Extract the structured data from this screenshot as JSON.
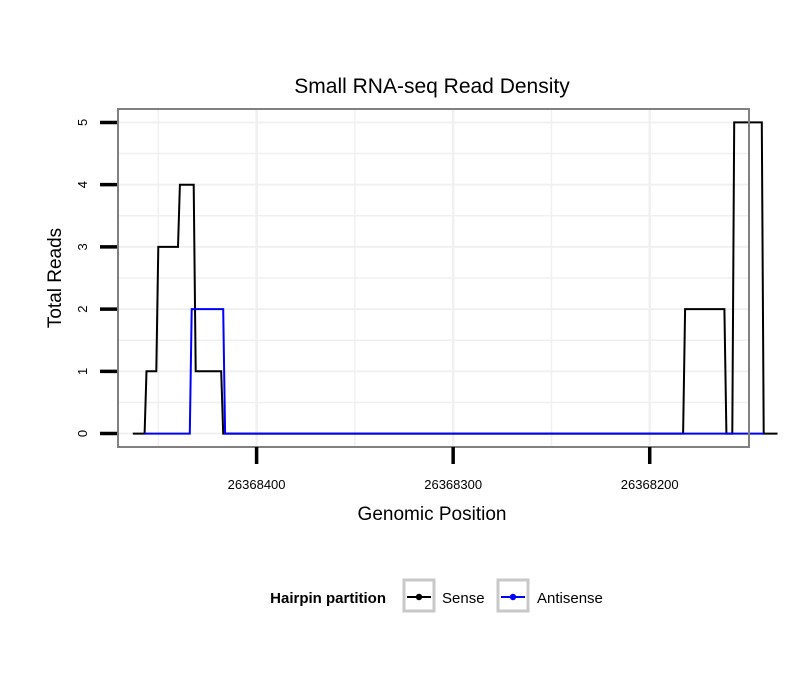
{
  "chart_data": {
    "type": "line",
    "title": "Small RNA-seq Read Density",
    "xlabel": "Genomic Position",
    "ylabel": "Total Reads",
    "x_reversed": true,
    "xlim": [
      26368470,
      26368150
    ],
    "ylim": [
      -0.2,
      5.2
    ],
    "x_ticks": [
      26368400,
      26368300,
      26368200
    ],
    "x_tick_labels": [
      "26368400",
      "26368300",
      "26368200"
    ],
    "y_ticks": [
      0,
      1,
      2,
      3,
      4,
      5
    ],
    "y_tick_labels": [
      "0",
      "1",
      "2",
      "3",
      "4",
      "5"
    ],
    "grid": true,
    "legend": {
      "title": "Hairpin partition",
      "placement": "bottom",
      "entries": [
        {
          "name": "Sense",
          "color": "#000000"
        },
        {
          "name": "Antisense",
          "color": "#0000ff"
        }
      ]
    },
    "series": [
      {
        "name": "Sense",
        "color": "#000000",
        "x": [
          26368463,
          26368457,
          26368456,
          26368451,
          26368450,
          26368440,
          26368439,
          26368432,
          26368431,
          26368418,
          26368417,
          26368416,
          26368183,
          26368182,
          26368162,
          26368161,
          26368158,
          26368157,
          26368143,
          26368142,
          26368135
        ],
        "y": [
          0,
          0,
          1,
          1,
          3,
          3,
          4,
          4,
          1,
          1,
          0,
          0,
          0,
          2,
          2,
          0,
          0,
          5,
          5,
          0,
          0
        ]
      },
      {
        "name": "Antisense",
        "color": "#0000ff",
        "x": [
          26368457,
          26368434,
          26368433,
          26368417,
          26368416,
          26368183,
          26368142
        ],
        "y": [
          0,
          0,
          2,
          2,
          0,
          0,
          0
        ]
      }
    ]
  }
}
